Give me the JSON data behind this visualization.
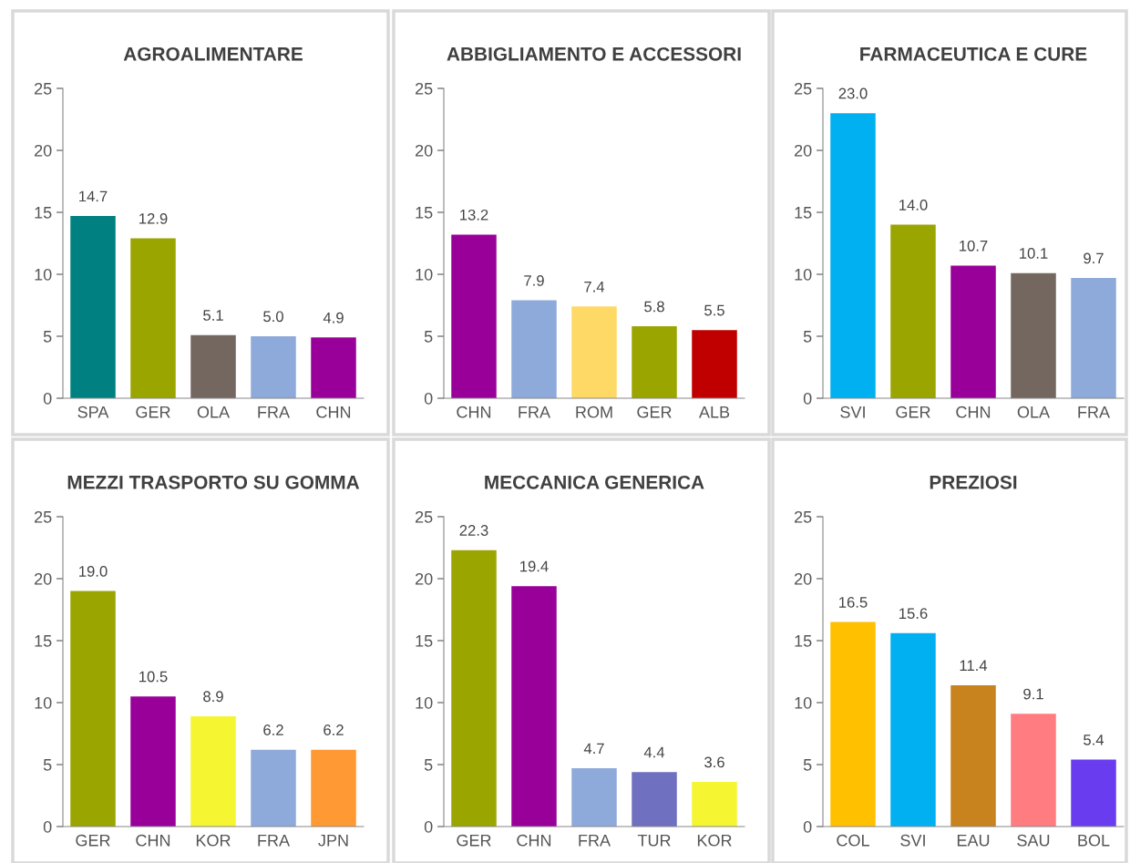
{
  "chart_data": [
    {
      "type": "bar",
      "title": "AGROALIMENTARE",
      "categories": [
        "SPA",
        "GER",
        "OLA",
        "FRA",
        "CHN"
      ],
      "values": [
        14.7,
        12.9,
        5.1,
        5.0,
        4.9
      ],
      "colors": [
        "#008080",
        "#9aa500",
        "#736760",
        "#8eaadb",
        "#990099"
      ],
      "ylim": [
        0,
        25
      ],
      "yticks": [
        0,
        5,
        10,
        15,
        20,
        25
      ],
      "data_labels": true,
      "value_labels": [
        "14.7",
        "12.9",
        "5.1",
        "5.0",
        "4.9"
      ],
      "grid": false,
      "legend": false
    },
    {
      "type": "bar",
      "title": "ABBIGLIAMENTO E ACCESSORI",
      "categories": [
        "CHN",
        "FRA",
        "ROM",
        "GER",
        "ALB"
      ],
      "values": [
        13.2,
        7.9,
        7.4,
        5.8,
        5.5
      ],
      "colors": [
        "#990099",
        "#8eaadb",
        "#ffd966",
        "#9aa500",
        "#c00000"
      ],
      "ylim": [
        0,
        25
      ],
      "yticks": [
        0,
        5,
        10,
        15,
        20,
        25
      ],
      "data_labels": true,
      "value_labels": [
        "13.2",
        "7.9",
        "7.4",
        "5.8",
        "5.5"
      ],
      "grid": false,
      "legend": false
    },
    {
      "type": "bar",
      "title": "FARMACEUTICA E CURE",
      "categories": [
        "SVI",
        "GER",
        "CHN",
        "OLA",
        "FRA"
      ],
      "values": [
        23.0,
        14.0,
        10.7,
        10.1,
        9.7
      ],
      "colors": [
        "#00b0f0",
        "#9aa500",
        "#990099",
        "#736760",
        "#8eaadb"
      ],
      "ylim": [
        0,
        25
      ],
      "yticks": [
        0,
        5,
        10,
        15,
        20,
        25
      ],
      "data_labels": true,
      "value_labels": [
        "23.0",
        "14.0",
        "10.7",
        "10.1",
        "9.7"
      ],
      "grid": false,
      "legend": false
    },
    {
      "type": "bar",
      "title": "MEZZI TRASPORTO SU GOMMA",
      "categories": [
        "GER",
        "CHN",
        "KOR",
        "FRA",
        "JPN"
      ],
      "values": [
        19.0,
        10.5,
        8.9,
        6.2,
        6.2
      ],
      "colors": [
        "#9aa500",
        "#990099",
        "#f5f532",
        "#8eaadb",
        "#ff9933"
      ],
      "ylim": [
        0,
        25
      ],
      "yticks": [
        0,
        5,
        10,
        15,
        20,
        25
      ],
      "data_labels": true,
      "value_labels": [
        "19.0",
        "10.5",
        "8.9",
        "6.2",
        "6.2"
      ],
      "grid": false,
      "legend": false
    },
    {
      "type": "bar",
      "title": "MECCANICA GENERICA",
      "categories": [
        "GER",
        "CHN",
        "FRA",
        "TUR",
        "KOR"
      ],
      "values": [
        22.3,
        19.4,
        4.7,
        4.4,
        3.6
      ],
      "colors": [
        "#9aa500",
        "#990099",
        "#8eaadb",
        "#7070c0",
        "#f5f532"
      ],
      "ylim": [
        0,
        25
      ],
      "yticks": [
        0,
        5,
        10,
        15,
        20,
        25
      ],
      "data_labels": true,
      "value_labels": [
        "22.3",
        "19.4",
        "4.7",
        "4.4",
        "3.6"
      ],
      "grid": false,
      "legend": false
    },
    {
      "type": "bar",
      "title": "PREZIOSI",
      "categories": [
        "COL",
        "SVI",
        "EAU",
        "SAU",
        "BOL"
      ],
      "values": [
        16.5,
        15.6,
        11.4,
        9.1,
        5.4
      ],
      "colors": [
        "#ffc000",
        "#00b0f0",
        "#c8821e",
        "#ff7c80",
        "#6a3cf0"
      ],
      "ylim": [
        0,
        25
      ],
      "yticks": [
        0,
        5,
        10,
        15,
        20,
        25
      ],
      "data_labels": true,
      "value_labels": [
        "16.5",
        "15.6",
        "11.4",
        "9.1",
        "5.4"
      ],
      "grid": false,
      "legend": false
    }
  ]
}
